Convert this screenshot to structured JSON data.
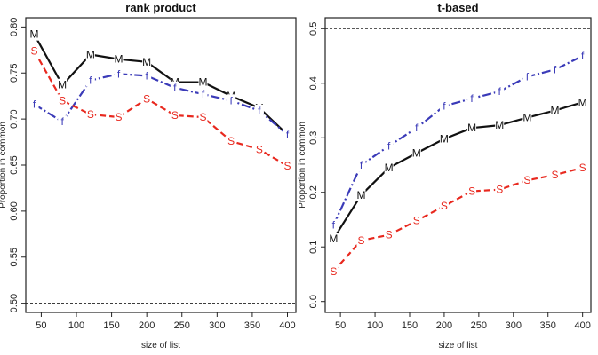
{
  "chart_data": [
    {
      "type": "line",
      "title": "rank product",
      "xlabel": "size of list",
      "ylabel": "Proportion in common",
      "x": [
        40,
        80,
        120,
        160,
        200,
        240,
        280,
        320,
        360,
        400
      ],
      "xlim": [
        28,
        412
      ],
      "ylim": [
        0.49,
        0.81
      ],
      "xticks": [
        "50",
        "100",
        "150",
        "200",
        "250",
        "300",
        "350",
        "400"
      ],
      "xtick_values": [
        50,
        100,
        150,
        200,
        250,
        300,
        350,
        400
      ],
      "yticks": [
        "0.50",
        "0.55",
        "0.60",
        "0.65",
        "0.70",
        "0.75",
        "0.80"
      ],
      "ytick_values": [
        0.5,
        0.55,
        0.6,
        0.65,
        0.7,
        0.75,
        0.8
      ],
      "reference_line": 0.5,
      "series": [
        {
          "marker": "M",
          "color": "#111111",
          "dash": "solid",
          "values": [
            0.792,
            0.737,
            0.77,
            0.765,
            0.762,
            0.74,
            0.74,
            0.725,
            0.712,
            0.683
          ]
        },
        {
          "marker": "f",
          "color": "#3a3ab8",
          "dash": "dashdot",
          "values": [
            0.716,
            0.697,
            0.742,
            0.749,
            0.747,
            0.734,
            0.727,
            0.72,
            0.709,
            0.683
          ]
        },
        {
          "marker": "S",
          "color": "#e8281e",
          "dash": "dashed",
          "values": [
            0.774,
            0.72,
            0.705,
            0.702,
            0.722,
            0.704,
            0.702,
            0.676,
            0.667,
            0.649
          ]
        }
      ]
    },
    {
      "type": "line",
      "title": "t-based",
      "xlabel": "size of list",
      "ylabel": "Proportion in common",
      "x": [
        40,
        80,
        120,
        160,
        200,
        240,
        280,
        320,
        360,
        400
      ],
      "xlim": [
        28,
        412
      ],
      "ylim": [
        -0.02,
        0.52
      ],
      "xticks": [
        "50",
        "100",
        "150",
        "200",
        "250",
        "300",
        "350",
        "400"
      ],
      "xtick_values": [
        50,
        100,
        150,
        200,
        250,
        300,
        350,
        400
      ],
      "yticks": [
        "0.0",
        "0.1",
        "0.2",
        "0.3",
        "0.4",
        "0.5"
      ],
      "ytick_values": [
        0.0,
        0.1,
        0.2,
        0.3,
        0.4,
        0.5
      ],
      "reference_line": 0.5,
      "series": [
        {
          "marker": "M",
          "color": "#111111",
          "dash": "solid",
          "values": [
            0.115,
            0.195,
            0.245,
            0.272,
            0.298,
            0.318,
            0.323,
            0.337,
            0.35,
            0.365
          ]
        },
        {
          "marker": "f",
          "color": "#3a3ab8",
          "dash": "dashdot",
          "values": [
            0.14,
            0.25,
            0.285,
            0.318,
            0.358,
            0.372,
            0.385,
            0.412,
            0.425,
            0.45
          ]
        },
        {
          "marker": "S",
          "color": "#e8281e",
          "dash": "dashed",
          "values": [
            0.055,
            0.112,
            0.122,
            0.148,
            0.175,
            0.202,
            0.205,
            0.222,
            0.232,
            0.245
          ]
        }
      ]
    }
  ]
}
